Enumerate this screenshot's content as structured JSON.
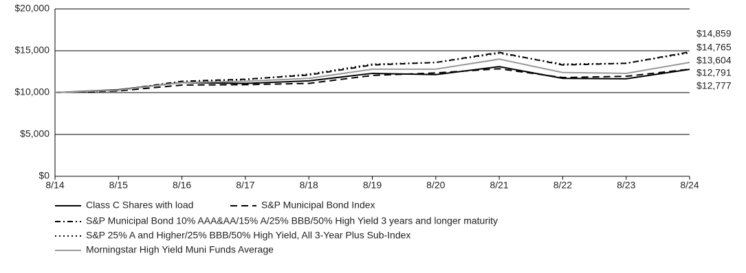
{
  "chart_data": {
    "type": "line",
    "categories": [
      "8/14",
      "8/15",
      "8/16",
      "8/17",
      "8/18",
      "8/19",
      "8/20",
      "8/21",
      "8/22",
      "8/23",
      "8/24"
    ],
    "ylim": [
      0,
      20000
    ],
    "yticks": [
      {
        "value": 0,
        "label": "$0"
      },
      {
        "value": 5000,
        "label": "$5,000"
      },
      {
        "value": 10000,
        "label": "$10,000"
      },
      {
        "value": 15000,
        "label": "$15,000"
      },
      {
        "value": 20000,
        "label": "$20,000"
      }
    ],
    "grid": true,
    "series": [
      {
        "name": "Class C Shares with load",
        "color": "#000000",
        "dash": "solid",
        "values": [
          10000,
          10350,
          11200,
          11100,
          11400,
          12300,
          12150,
          13100,
          11700,
          11650,
          12777
        ],
        "value_labels": [
          null,
          null,
          null,
          null,
          null,
          null,
          null,
          null,
          null,
          null,
          "$12,777"
        ]
      },
      {
        "name": "S&P Municipal Bond Index",
        "color": "#000000",
        "dash": "dashed",
        "values": [
          10000,
          10200,
          10900,
          10950,
          11100,
          12050,
          12350,
          12850,
          11800,
          11950,
          12791
        ],
        "value_labels": [
          null,
          null,
          null,
          null,
          null,
          null,
          null,
          null,
          null,
          null,
          "$12,791"
        ]
      },
      {
        "name": "S&P Municipal Bond 10% AAA&AA/15% A/25% BBB/50% High Yield 3 years and longer maturity",
        "color": "#000000",
        "dash": "dashdot",
        "values": [
          10000,
          10300,
          11350,
          11600,
          12100,
          13300,
          13600,
          14800,
          13300,
          13500,
          14859
        ],
        "value_labels": [
          null,
          null,
          null,
          null,
          null,
          null,
          null,
          null,
          null,
          null,
          "$14,859"
        ]
      },
      {
        "name": "S&P 25% A and Higher/25% BBB/50% High Yield, All 3-Year Plus Sub-Index",
        "color": "#000000",
        "dash": "dotted",
        "values": [
          10000,
          10250,
          11300,
          11550,
          12200,
          13400,
          13600,
          14700,
          13400,
          13500,
          14765
        ],
        "value_labels": [
          null,
          null,
          null,
          null,
          null,
          null,
          null,
          null,
          null,
          null,
          "$14,765"
        ]
      },
      {
        "name": "Morningstar High Yield Muni Funds Average",
        "color": "#999999",
        "dash": "solid",
        "values": [
          10000,
          10300,
          11200,
          11350,
          11700,
          12800,
          12800,
          14000,
          12400,
          12300,
          13604
        ],
        "value_labels": [
          null,
          null,
          null,
          null,
          null,
          null,
          null,
          null,
          null,
          null,
          "$13,604"
        ]
      }
    ]
  }
}
